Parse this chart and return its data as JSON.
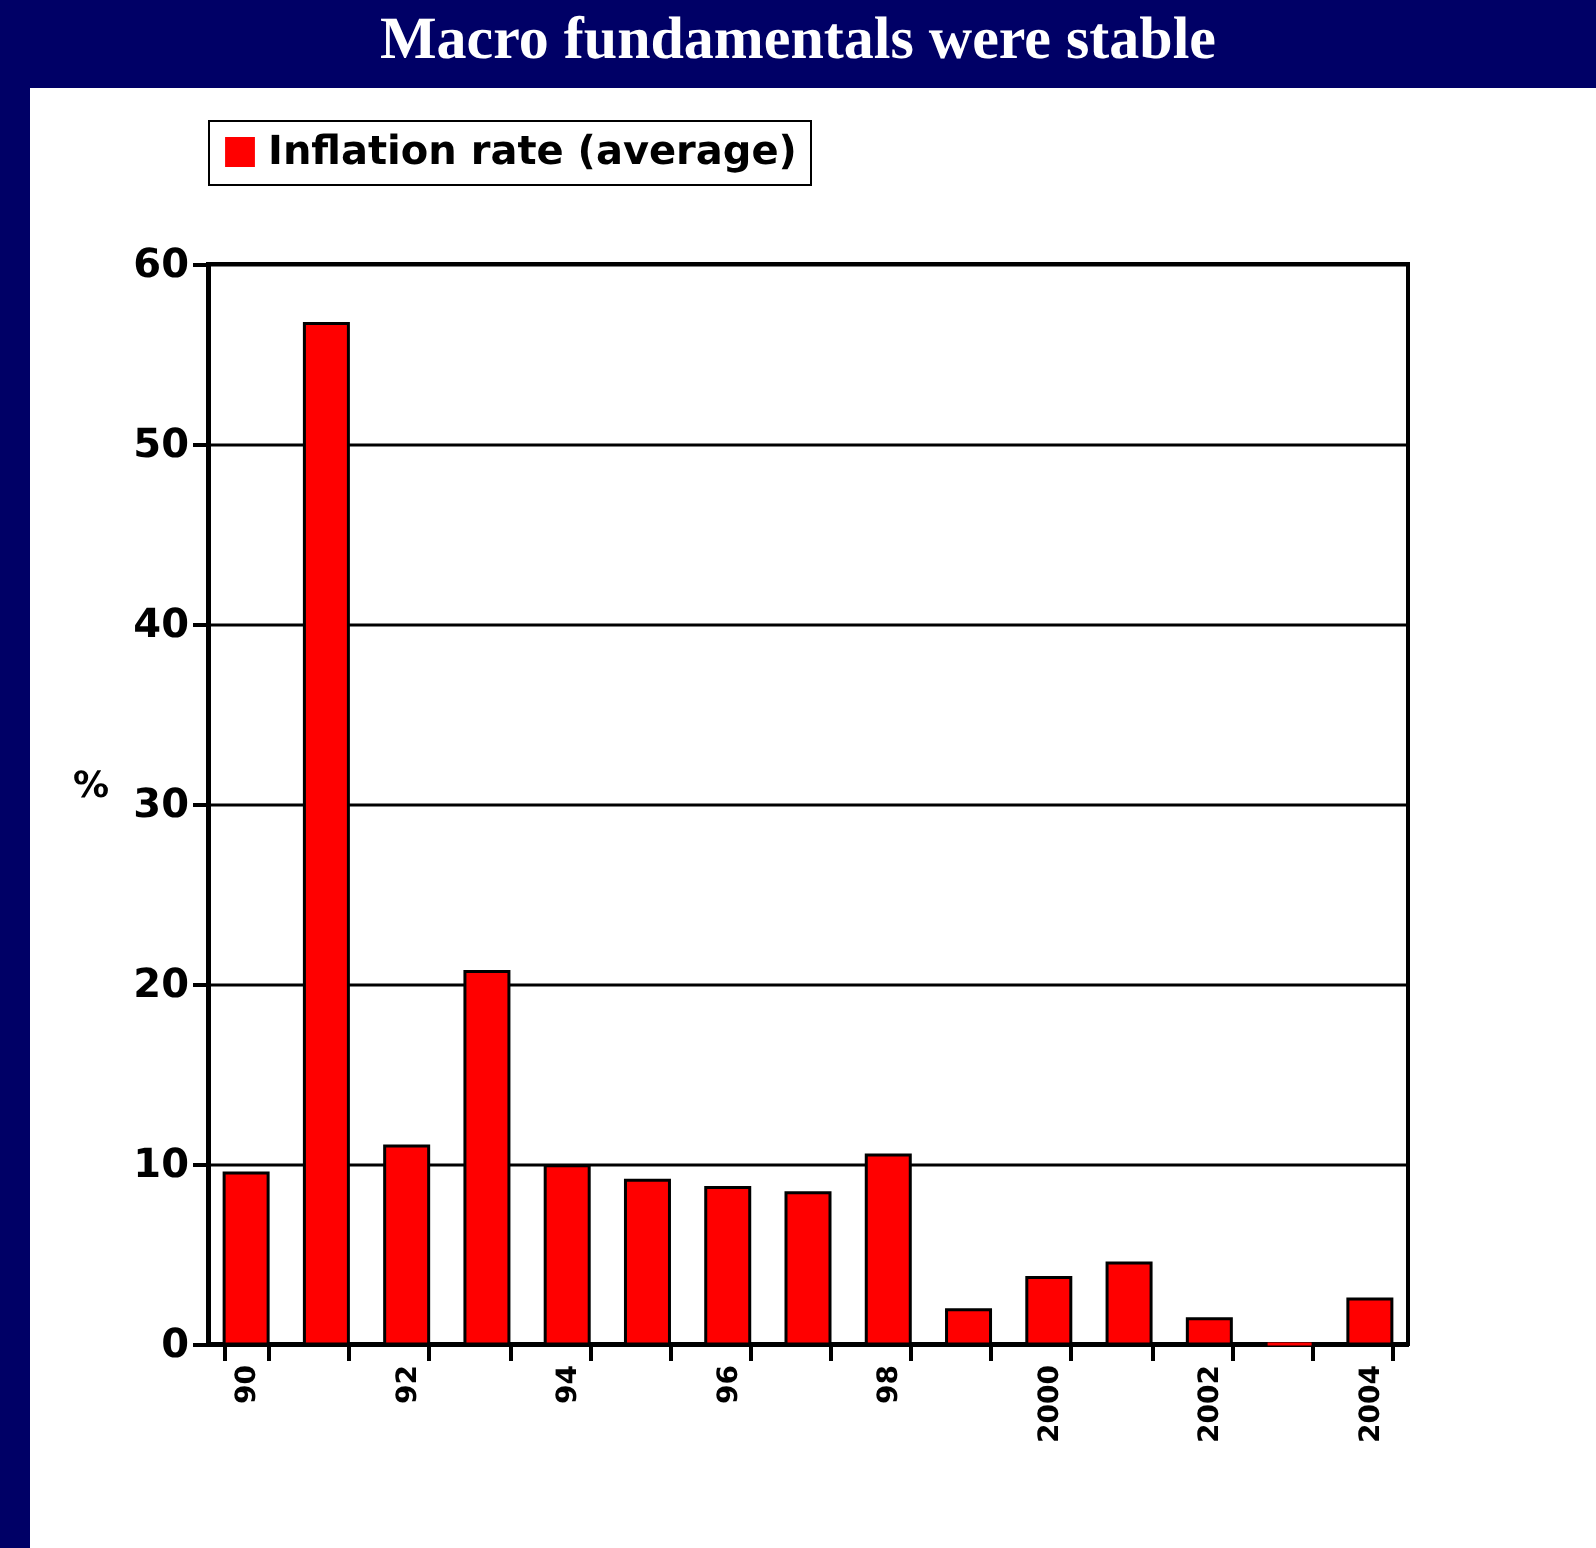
{
  "chart_data": {
    "type": "bar",
    "title": "Macro fundamentals were stable",
    "ylabel": "%",
    "categories": [
      "90",
      null,
      "92",
      null,
      "94",
      null,
      "96",
      null,
      "98",
      null,
      "2000",
      null,
      "2002",
      null,
      "2004"
    ],
    "series": [
      {
        "name": "Inflation rate (average)",
        "color": "#ff0000",
        "values": [
          9.5,
          56.7,
          11,
          20.7,
          9.9,
          9.1,
          8.7,
          8.4,
          10.5,
          1.9,
          3.7,
          4.5,
          1.4,
          0,
          2.5
        ]
      }
    ],
    "ylim": [
      0,
      60
    ],
    "yticks": [
      0,
      10,
      20,
      30,
      40,
      50,
      60
    ],
    "grid": "y",
    "legend": "top"
  }
}
